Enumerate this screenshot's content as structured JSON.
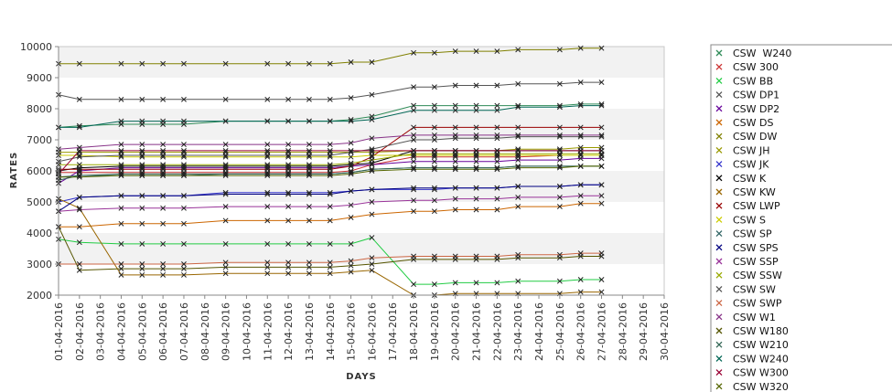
{
  "chart_data": {
    "type": "line",
    "title": "",
    "xlabel": "DAYS",
    "ylabel": "RATES",
    "ylim": [
      2000,
      10000
    ],
    "yticks": [
      2000,
      3000,
      4000,
      5000,
      6000,
      7000,
      8000,
      9000,
      10000
    ],
    "grid": "alternating horizontal bands",
    "legend_position": "right",
    "categories": [
      "01-04-2016",
      "02-04-2016",
      "03-04-2016",
      "04-04-2016",
      "05-04-2016",
      "06-04-2016",
      "07-04-2016",
      "08-04-2016",
      "09-04-2016",
      "10-04-2016",
      "11-04-2016",
      "12-04-2016",
      "13-04-2016",
      "14-04-2016",
      "15-04-2016",
      "16-04-2016",
      "17-04-2016",
      "18-04-2016",
      "19-04-2016",
      "20-04-2016",
      "21-04-2016",
      "22-04-2016",
      "23-04-2016",
      "24-04-2016",
      "25-04-2016",
      "26-04-2016",
      "27-04-2016",
      "28-04-2016",
      "29-04-2016",
      "30-04-2016"
    ],
    "series": [
      {
        "name": "CSW  W240",
        "color": "#2e8b57",
        "values": [
          7400,
          7450,
          null,
          7500,
          7500,
          7500,
          7500,
          null,
          7600,
          null,
          7600,
          7600,
          7600,
          7600,
          7650,
          7750,
          null,
          8100,
          8100,
          8100,
          8100,
          8100,
          8100,
          null,
          8100,
          8150,
          8150,
          null,
          null,
          null
        ]
      },
      {
        "name": "CSW 300",
        "color": "#cc3333",
        "values": [
          5950,
          5950,
          null,
          5950,
          5950,
          5950,
          5950,
          null,
          5950,
          null,
          5950,
          5950,
          5950,
          5950,
          6000,
          6200,
          null,
          6450,
          6450,
          6450,
          6450,
          6450,
          6450,
          null,
          6500,
          6500,
          6500,
          null,
          null,
          null
        ]
      },
      {
        "name": "CSW BB",
        "color": "#22cc44",
        "values": [
          3800,
          3700,
          null,
          3650,
          3650,
          3650,
          3650,
          null,
          3650,
          null,
          3650,
          3650,
          3650,
          3650,
          3650,
          3850,
          null,
          2350,
          2350,
          2400,
          2400,
          2400,
          2450,
          null,
          2450,
          2500,
          2500,
          null,
          null,
          null
        ]
      },
      {
        "name": "CSW DP1",
        "color": "#555555",
        "values": [
          8450,
          8300,
          null,
          8300,
          8300,
          8300,
          8300,
          null,
          8300,
          null,
          8300,
          8300,
          8300,
          8300,
          8350,
          8450,
          null,
          8700,
          8700,
          8750,
          8750,
          8750,
          8800,
          null,
          8800,
          8850,
          8850,
          null,
          null,
          null
        ]
      },
      {
        "name": "CSW DP2",
        "color": "#660099",
        "values": [
          5600,
          6000,
          null,
          6100,
          6100,
          6100,
          6100,
          null,
          6100,
          null,
          6100,
          6100,
          6100,
          6100,
          6150,
          6200,
          null,
          6300,
          6300,
          6300,
          6300,
          6300,
          6350,
          null,
          6350,
          6400,
          6400,
          null,
          null,
          null
        ]
      },
      {
        "name": "CSW DS",
        "color": "#cc6600",
        "values": [
          4200,
          4200,
          null,
          4300,
          4300,
          4300,
          4300,
          null,
          4400,
          null,
          4400,
          4400,
          4400,
          4400,
          4500,
          4600,
          null,
          4700,
          4700,
          4750,
          4750,
          4750,
          4850,
          null,
          4850,
          4950,
          4950,
          null,
          null,
          null
        ]
      },
      {
        "name": "CSW DW",
        "color": "#808000",
        "values": [
          9450,
          9450,
          null,
          9450,
          9450,
          9450,
          9450,
          null,
          9450,
          null,
          9450,
          9450,
          9450,
          9450,
          9500,
          9500,
          null,
          9800,
          9800,
          9850,
          9850,
          9850,
          9900,
          null,
          9900,
          9950,
          9950,
          null,
          null,
          null
        ]
      },
      {
        "name": "CSW JH",
        "color": "#999900",
        "values": [
          6600,
          6600,
          null,
          6600,
          6600,
          6600,
          6600,
          null,
          6600,
          null,
          6600,
          6600,
          6600,
          6600,
          6600,
          6600,
          null,
          6650,
          6650,
          6650,
          6650,
          6650,
          6700,
          null,
          6700,
          6750,
          6750,
          null,
          null,
          null
        ]
      },
      {
        "name": "CSW JK",
        "color": "#3333cc",
        "values": [
          5000,
          5150,
          null,
          5200,
          5200,
          5200,
          5200,
          null,
          5300,
          null,
          5300,
          5300,
          5300,
          5300,
          5350,
          5400,
          null,
          5400,
          5400,
          5450,
          5450,
          5450,
          5500,
          null,
          5500,
          5550,
          5550,
          null,
          null,
          null
        ]
      },
      {
        "name": "CSW K",
        "color": "#000000",
        "values": [
          6000,
          6100,
          null,
          6150,
          6150,
          6150,
          6150,
          null,
          6150,
          null,
          6150,
          6150,
          6150,
          6150,
          6200,
          6250,
          null,
          6650,
          6650,
          6650,
          6650,
          6650,
          6650,
          null,
          6650,
          6650,
          6650,
          null,
          null,
          null
        ]
      },
      {
        "name": "CSW KW",
        "color": "#996600",
        "values": [
          5100,
          4800,
          null,
          2650,
          2650,
          2650,
          2650,
          null,
          2700,
          null,
          2700,
          2700,
          2700,
          2700,
          2750,
          2800,
          null,
          2000,
          2000,
          2050,
          2050,
          2050,
          2050,
          null,
          2050,
          2100,
          2100,
          null,
          null,
          null
        ]
      },
      {
        "name": "CSW LWP",
        "color": "#990000",
        "values": [
          6050,
          6050,
          null,
          6050,
          6050,
          6050,
          6050,
          null,
          6050,
          null,
          6050,
          6050,
          6050,
          6050,
          6150,
          6450,
          null,
          7400,
          7400,
          7400,
          7400,
          7400,
          7400,
          null,
          7400,
          7400,
          7400,
          null,
          null,
          null
        ]
      },
      {
        "name": "CSW S",
        "color": "#cccc00",
        "values": [
          6500,
          6500,
          null,
          6450,
          6450,
          6450,
          6450,
          null,
          6450,
          null,
          6450,
          6450,
          6450,
          6450,
          6450,
          6500,
          null,
          6500,
          6500,
          6500,
          6500,
          6500,
          6500,
          null,
          6500,
          6500,
          6500,
          null,
          null,
          null
        ]
      },
      {
        "name": "CSW SP",
        "color": "#336666",
        "values": [
          5800,
          5850,
          null,
          5850,
          5850,
          5850,
          5850,
          null,
          5900,
          null,
          5900,
          5900,
          5900,
          5900,
          5950,
          6050,
          null,
          6100,
          6100,
          6100,
          6100,
          6100,
          6150,
          null,
          6150,
          6150,
          6150,
          null,
          null,
          null
        ]
      },
      {
        "name": "CSW SPS",
        "color": "#000080",
        "values": [
          4700,
          5150,
          null,
          5200,
          5200,
          5200,
          5200,
          null,
          5250,
          null,
          5250,
          5250,
          5250,
          5250,
          5350,
          5400,
          null,
          5450,
          5450,
          5450,
          5450,
          5450,
          5500,
          null,
          5500,
          5550,
          5550,
          null,
          null,
          null
        ]
      },
      {
        "name": "CSW SSP",
        "color": "#993399",
        "values": [
          4700,
          4750,
          null,
          4800,
          4800,
          4800,
          4800,
          null,
          4850,
          null,
          4850,
          4850,
          4850,
          4850,
          4900,
          5000,
          null,
          5050,
          5050,
          5100,
          5100,
          5100,
          5150,
          null,
          5150,
          5200,
          5200,
          null,
          null,
          null
        ]
      },
      {
        "name": "CSW SSW",
        "color": "#99aa00",
        "values": [
          6200,
          6200,
          null,
          6200,
          6200,
          6200,
          6200,
          null,
          6200,
          null,
          6200,
          6200,
          6200,
          6200,
          6250,
          6350,
          null,
          6550,
          6550,
          6550,
          6550,
          6550,
          6550,
          null,
          6550,
          6550,
          6550,
          null,
          null,
          null
        ]
      },
      {
        "name": "CSW SW",
        "color": "#555555",
        "values": [
          6300,
          6450,
          null,
          6500,
          6500,
          6500,
          6500,
          null,
          6500,
          null,
          6500,
          6500,
          6500,
          6500,
          6600,
          6700,
          null,
          7000,
          7000,
          7050,
          7050,
          7050,
          7100,
          null,
          7100,
          7100,
          7100,
          null,
          null,
          null
        ]
      },
      {
        "name": "CSW SWP",
        "color": "#cc6644",
        "values": [
          3000,
          3000,
          null,
          3000,
          3000,
          3000,
          3000,
          null,
          3050,
          null,
          3050,
          3050,
          3050,
          3050,
          3100,
          3200,
          null,
          3250,
          3250,
          3250,
          3250,
          3250,
          3300,
          null,
          3300,
          3350,
          3350,
          null,
          null,
          null
        ]
      },
      {
        "name": "CSW W1",
        "color": "#883388",
        "values": [
          6700,
          6750,
          null,
          6850,
          6850,
          6850,
          6850,
          null,
          6850,
          null,
          6850,
          6850,
          6850,
          6850,
          6900,
          7050,
          null,
          7150,
          7150,
          7150,
          7150,
          7150,
          7150,
          null,
          7150,
          7150,
          7150,
          null,
          null,
          null
        ]
      },
      {
        "name": "CSW W180",
        "color": "#555500",
        "values": [
          4200,
          2800,
          null,
          2850,
          2850,
          2850,
          2850,
          null,
          2900,
          null,
          2900,
          2900,
          2900,
          2900,
          2950,
          3000,
          null,
          3150,
          3150,
          3150,
          3150,
          3150,
          3200,
          null,
          3200,
          3250,
          3250,
          null,
          null,
          null
        ]
      },
      {
        "name": "CSW W210",
        "color": "#336655",
        "values": [
          5700,
          5850,
          null,
          5900,
          5900,
          5900,
          5900,
          null,
          5900,
          null,
          5900,
          5900,
          5900,
          5900,
          5950,
          6050,
          null,
          6100,
          6100,
          6100,
          6100,
          6100,
          6150,
          null,
          6150,
          6150,
          6150,
          null,
          null,
          null
        ]
      },
      {
        "name": "CSW W240",
        "color": "#006655",
        "values": [
          7400,
          7400,
          null,
          7600,
          7600,
          7600,
          7600,
          null,
          7600,
          null,
          7600,
          7600,
          7600,
          7600,
          7600,
          7650,
          null,
          7950,
          7950,
          7950,
          7950,
          7950,
          8050,
          null,
          8050,
          8100,
          8100,
          null,
          null,
          null
        ]
      },
      {
        "name": "CSW W300",
        "color": "#990033",
        "values": [
          5900,
          6650,
          null,
          6650,
          6650,
          6650,
          6650,
          null,
          6650,
          null,
          6650,
          6650,
          6650,
          6650,
          6650,
          6650,
          null,
          6650,
          6650,
          6650,
          6650,
          6650,
          6650,
          null,
          6650,
          6650,
          6650,
          null,
          null,
          null
        ]
      },
      {
        "name": "CSW W320",
        "color": "#556600",
        "values": [
          5800,
          5800,
          null,
          5850,
          5850,
          5850,
          5850,
          null,
          5850,
          null,
          5850,
          5850,
          5850,
          5850,
          5900,
          6000,
          null,
          6050,
          6050,
          6050,
          6050,
          6050,
          6100,
          null,
          6100,
          6150,
          6150,
          null,
          null,
          null
        ]
      }
    ]
  }
}
